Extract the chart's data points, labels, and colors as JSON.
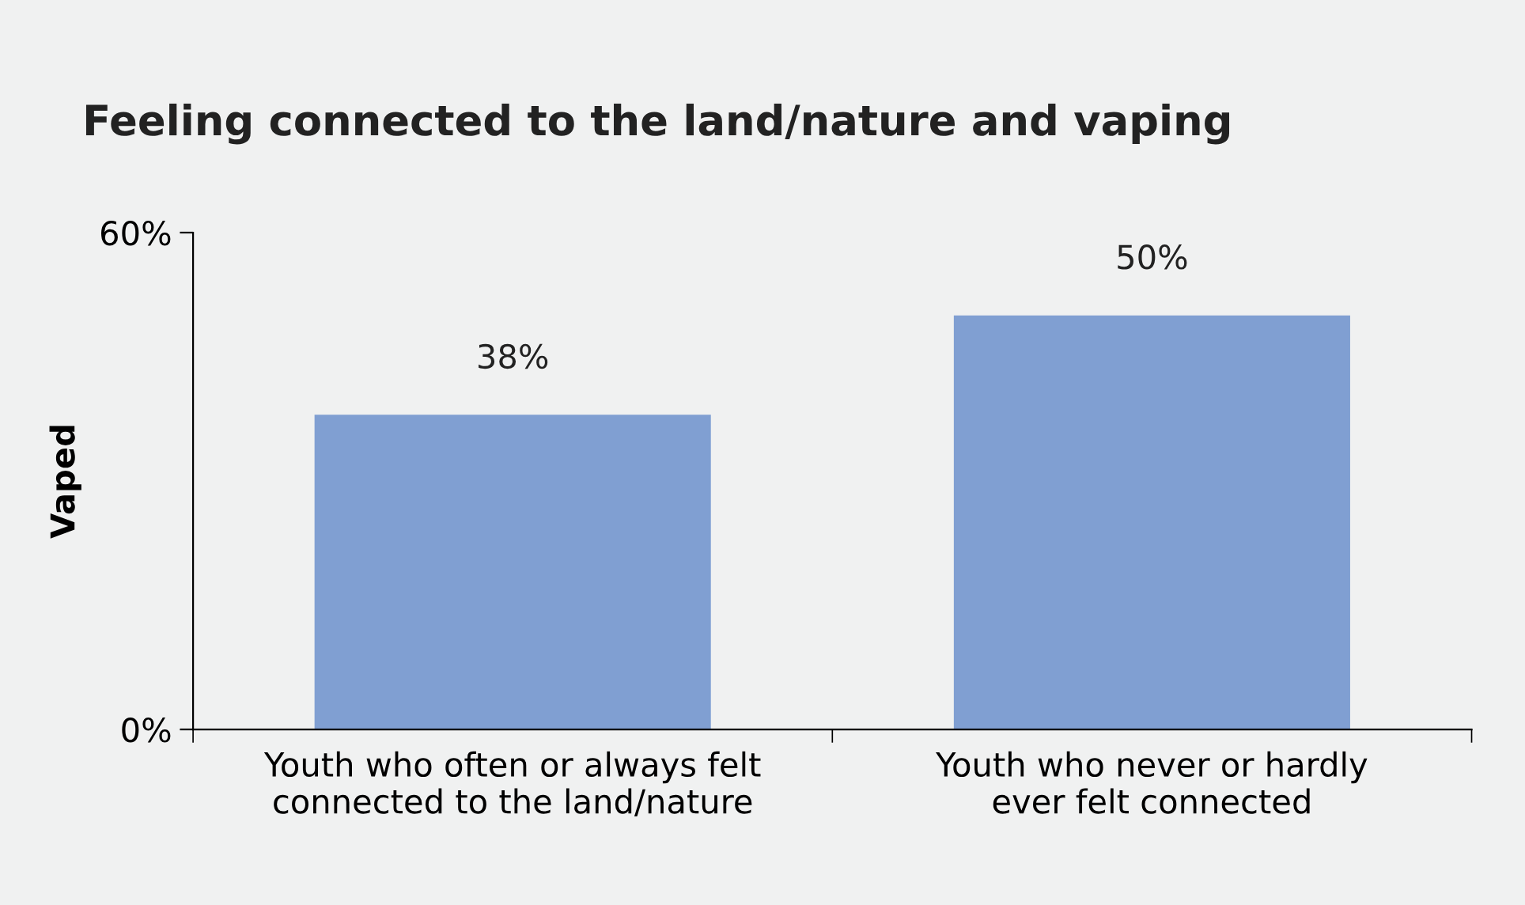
{
  "chart_data": {
    "type": "bar",
    "title": "Feeling connected to the land/nature and vaping",
    "ylabel": "Vaped",
    "categories": [
      "Youth who often or always felt\nconnected to the land/nature",
      "Youth who never or hardly\never felt connected"
    ],
    "values": [
      38,
      50
    ],
    "value_labels": [
      "38%",
      "50%"
    ],
    "color": "#809fd2",
    "ylim": [
      0,
      60
    ],
    "yticks": [
      {
        "value": 0,
        "label": "0%"
      },
      {
        "value": 60,
        "label": "60%"
      }
    ],
    "grid": false,
    "legend": false
  }
}
